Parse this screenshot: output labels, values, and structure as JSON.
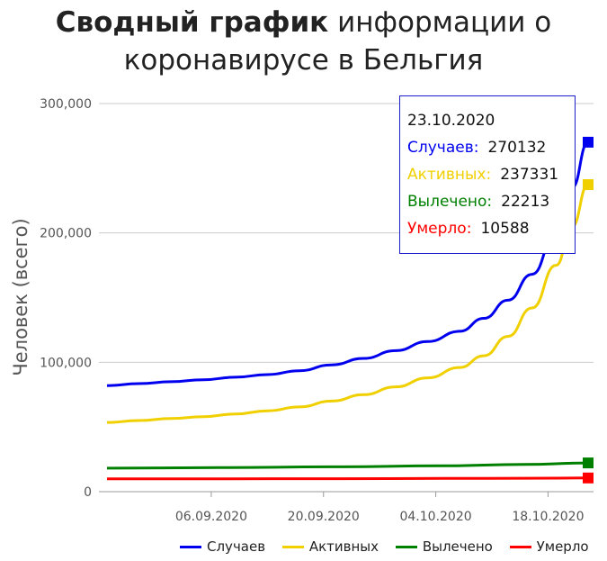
{
  "title_bold": "Сводный график",
  "title_rest": " информации о коронавирусе в Бельгия",
  "chart_data": {
    "type": "line",
    "ylabel": "Человек (всего)",
    "xlabel": "",
    "x_start": "2020-08-24",
    "x_end": "2020-10-23",
    "x_ticks": [
      {
        "date": "2020-09-06",
        "label": "06.09.2020"
      },
      {
        "date": "2020-09-20",
        "label": "20.09.2020"
      },
      {
        "date": "2020-10-04",
        "label": "04.10.2020"
      },
      {
        "date": "2020-10-18",
        "label": "18.10.2020"
      }
    ],
    "y_ticks": [
      {
        "value": 0,
        "label": "0"
      },
      {
        "value": 100000,
        "label": "100,000"
      },
      {
        "value": 200000,
        "label": "200,000"
      },
      {
        "value": 300000,
        "label": "300,000"
      }
    ],
    "ylim": [
      0,
      300000
    ],
    "grid": true,
    "legend_position": "bottom-right",
    "series": [
      {
        "name": "Случаев",
        "color": "#0000ee",
        "x": [
          "2020-08-24",
          "2020-08-28",
          "2020-09-01",
          "2020-09-05",
          "2020-09-09",
          "2020-09-13",
          "2020-09-17",
          "2020-09-21",
          "2020-09-25",
          "2020-09-29",
          "2020-10-03",
          "2020-10-07",
          "2020-10-10",
          "2020-10-13",
          "2020-10-16",
          "2020-10-19",
          "2020-10-21",
          "2020-10-23"
        ],
        "y": [
          82000,
          83500,
          85000,
          86500,
          88500,
          90500,
          93500,
          98000,
          103000,
          109000,
          116000,
          124000,
          134000,
          148000,
          168000,
          200000,
          235000,
          270132
        ]
      },
      {
        "name": "Активных",
        "color": "#f0d000",
        "x": [
          "2020-08-24",
          "2020-08-28",
          "2020-09-01",
          "2020-09-05",
          "2020-09-09",
          "2020-09-13",
          "2020-09-17",
          "2020-09-21",
          "2020-09-25",
          "2020-09-29",
          "2020-10-03",
          "2020-10-07",
          "2020-10-10",
          "2020-10-13",
          "2020-10-16",
          "2020-10-19",
          "2020-10-21",
          "2020-10-23"
        ],
        "y": [
          53500,
          55000,
          56500,
          58000,
          60000,
          62500,
          65500,
          70000,
          75000,
          81000,
          88000,
          96000,
          105000,
          120000,
          142000,
          175000,
          205000,
          237331
        ]
      },
      {
        "name": "Вылечено",
        "color": "#008000",
        "x": [
          "2020-08-24",
          "2020-09-07",
          "2020-09-21",
          "2020-10-05",
          "2020-10-15",
          "2020-10-23"
        ],
        "y": [
          18200,
          18600,
          19200,
          20000,
          21000,
          22213
        ]
      },
      {
        "name": "Умерло",
        "color": "#ff0000",
        "x": [
          "2020-08-24",
          "2020-09-07",
          "2020-09-21",
          "2020-10-05",
          "2020-10-15",
          "2020-10-23"
        ],
        "y": [
          9900,
          9960,
          10040,
          10200,
          10380,
          10588
        ]
      }
    ],
    "tooltip": {
      "date": "23.10.2020",
      "rows": [
        {
          "label": "Случаев:",
          "value": "270132",
          "color": "#0000ee"
        },
        {
          "label": "Активных:",
          "value": "237331",
          "color": "#f0d000"
        },
        {
          "label": "Вылечено:",
          "value": "22213",
          "color": "#008000"
        },
        {
          "label": "Умерло:",
          "value": "10588",
          "color": "#ff0000"
        }
      ]
    }
  }
}
